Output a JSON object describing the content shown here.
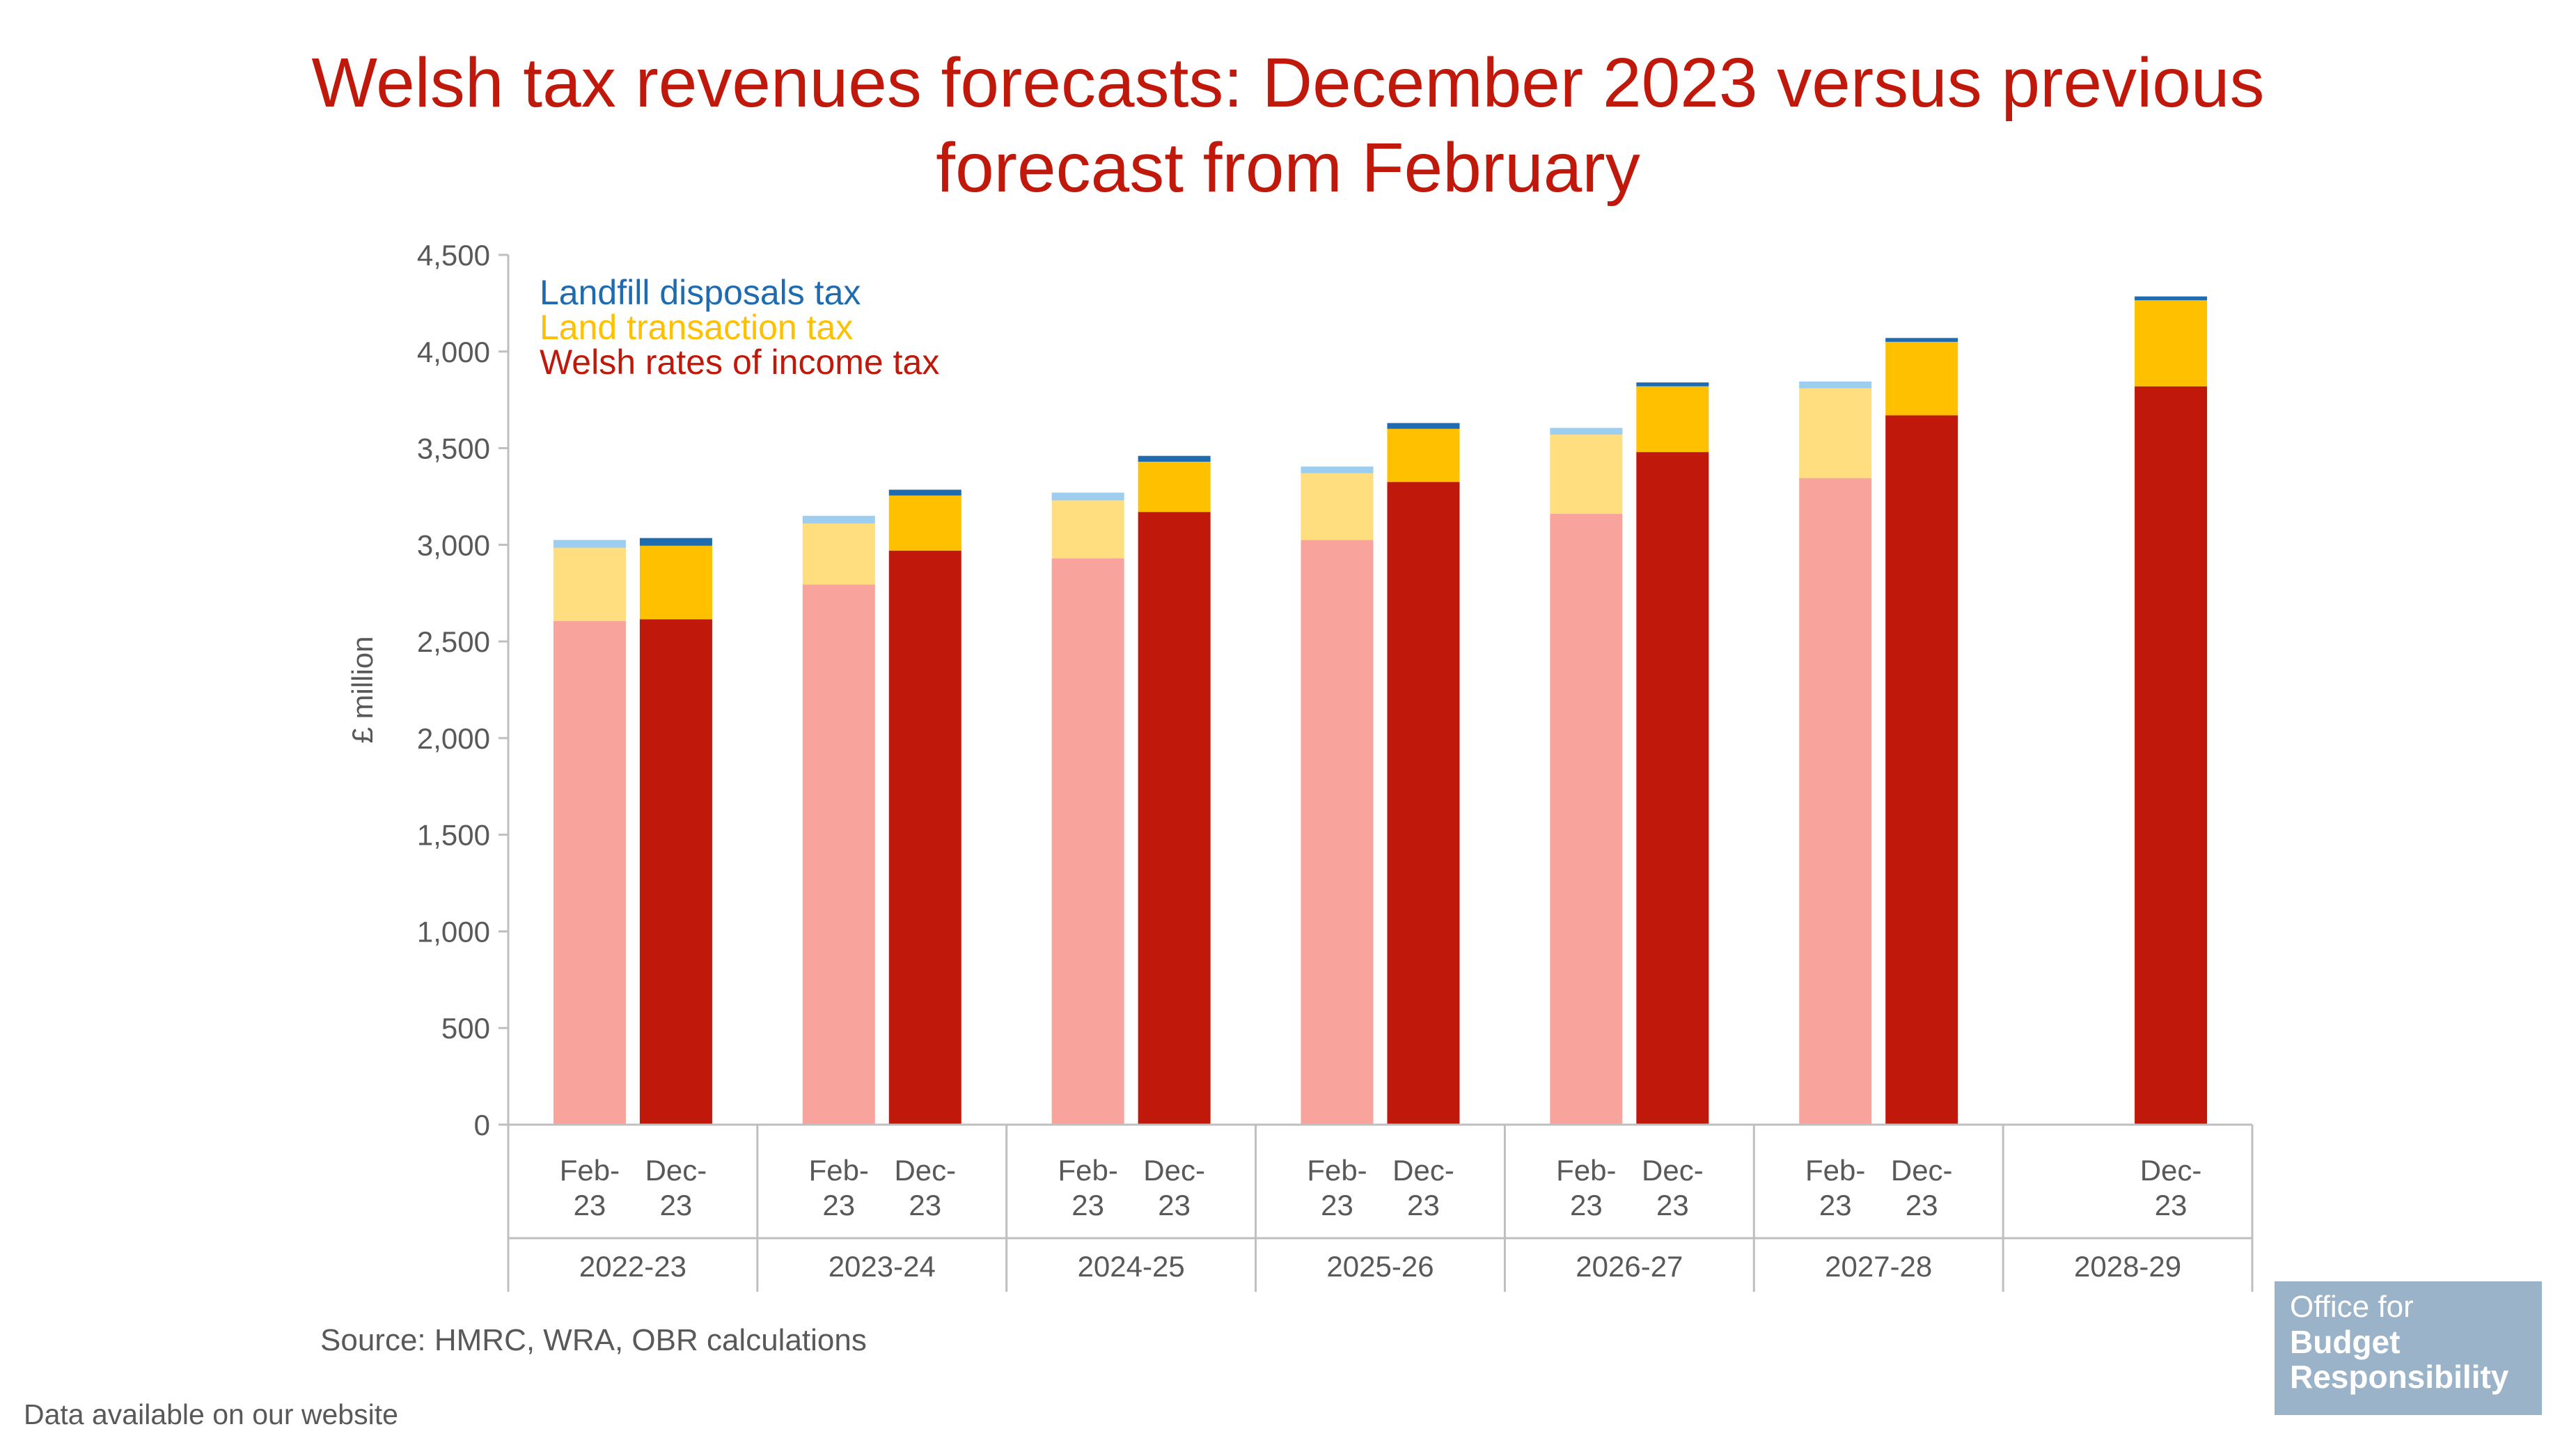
{
  "title_line1": "Welsh tax revenues forecasts: December 2023 versus previous",
  "title_line2": "forecast from February",
  "source": "Source: HMRC, WRA, OBR calculations",
  "website_note": "Data available on our website",
  "logo": {
    "line1": "Office for",
    "line2": "Budget",
    "line3": "Responsibility"
  },
  "colors": {
    "income_dec": "#C0180B",
    "income_feb": "#F8A39C",
    "ltt_dec": "#FFC000",
    "ltt_feb": "#FFDE7F",
    "ldt_dec": "#1F6BB0",
    "ldt_feb": "#9DCDEF",
    "axis": "#BFBFBF",
    "text": "#595959"
  },
  "chart_data": {
    "type": "bar",
    "stacked": true,
    "title": "Welsh tax revenues forecasts: December 2023 versus previous forecast from February",
    "ylabel": "£ million",
    "xlabel": "",
    "ylim": [
      0,
      4500
    ],
    "yticks": [
      0,
      500,
      1000,
      1500,
      2000,
      2500,
      3000,
      3500,
      4000,
      4500
    ],
    "ytick_labels": [
      "0",
      "500",
      "1,000",
      "1,500",
      "2,000",
      "2,500",
      "3,000",
      "3,500",
      "4,000",
      "4,500"
    ],
    "legend_position": "top-left",
    "legend": [
      "Landfill disposals tax",
      "Land transaction tax",
      "Welsh rates of income tax"
    ],
    "groups": [
      {
        "label": "2022-23",
        "bars": [
          {
            "label": "Feb-23",
            "forecast": "feb",
            "income": 2605,
            "ltt": 380,
            "ldt": 40
          },
          {
            "label": "Dec-23",
            "forecast": "dec",
            "income": 2615,
            "ltt": 380,
            "ldt": 40
          }
        ]
      },
      {
        "label": "2023-24",
        "bars": [
          {
            "label": "Feb-23",
            "forecast": "feb",
            "income": 2795,
            "ltt": 315,
            "ldt": 40
          },
          {
            "label": "Dec-23",
            "forecast": "dec",
            "income": 2970,
            "ltt": 285,
            "ldt": 30
          }
        ]
      },
      {
        "label": "2024-25",
        "bars": [
          {
            "label": "Feb-23",
            "forecast": "feb",
            "income": 2930,
            "ltt": 300,
            "ldt": 40
          },
          {
            "label": "Dec-23",
            "forecast": "dec",
            "income": 3170,
            "ltt": 260,
            "ldt": 30
          }
        ]
      },
      {
        "label": "2025-26",
        "bars": [
          {
            "label": "Feb-23",
            "forecast": "feb",
            "income": 3025,
            "ltt": 345,
            "ldt": 35
          },
          {
            "label": "Dec-23",
            "forecast": "dec",
            "income": 3325,
            "ltt": 275,
            "ldt": 30
          }
        ]
      },
      {
        "label": "2026-27",
        "bars": [
          {
            "label": "Feb-23",
            "forecast": "feb",
            "income": 3160,
            "ltt": 410,
            "ldt": 35
          },
          {
            "label": "Dec-23",
            "forecast": "dec",
            "income": 3480,
            "ltt": 340,
            "ldt": 20
          }
        ]
      },
      {
        "label": "2027-28",
        "bars": [
          {
            "label": "Feb-23",
            "forecast": "feb",
            "income": 3345,
            "ltt": 465,
            "ldt": 35
          },
          {
            "label": "Dec-23",
            "forecast": "dec",
            "income": 3670,
            "ltt": 380,
            "ldt": 20
          }
        ]
      },
      {
        "label": "2028-29",
        "bars": [
          {
            "label": "Dec-23",
            "forecast": "dec",
            "income": 3820,
            "ltt": 445,
            "ldt": 20
          }
        ]
      }
    ]
  }
}
